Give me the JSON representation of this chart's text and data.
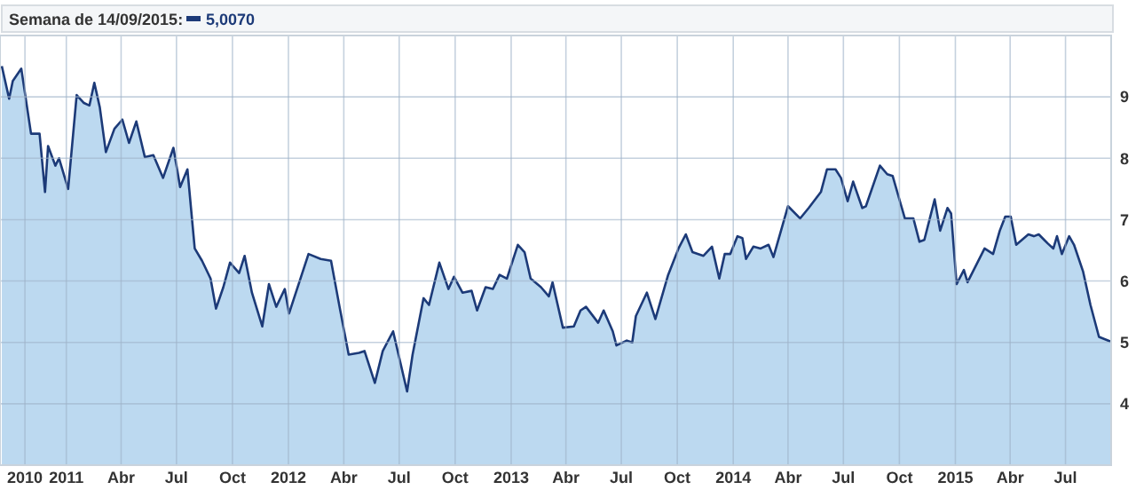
{
  "chart_data": {
    "type": "area",
    "title": "Semana de 14/09/2015:",
    "annotations": [
      "5,0070"
    ],
    "x": [
      "2010-09-17",
      "2010-09-29",
      "2010-10-05",
      "2010-10-19",
      "2010-11-04",
      "2010-11-18",
      "2010-11-27",
      "2010-12-02",
      "2010-12-14",
      "2010-12-20",
      "2011-01-04",
      "2011-01-18",
      "2011-01-30",
      "2011-02-08",
      "2011-02-16",
      "2011-02-25",
      "2011-03-07",
      "2011-03-21",
      "2011-04-03",
      "2011-04-14",
      "2011-04-26",
      "2011-05-10",
      "2011-05-24",
      "2011-06-09",
      "2011-06-26",
      "2011-07-07",
      "2011-07-19",
      "2011-07-31",
      "2011-08-12",
      "2011-08-26",
      "2011-09-04",
      "2011-09-16",
      "2011-09-27",
      "2011-10-12",
      "2011-10-21",
      "2011-11-02",
      "2011-11-19",
      "2011-11-30",
      "2011-12-12",
      "2011-12-26",
      "2012-01-02",
      "2012-02-03",
      "2012-02-23",
      "2012-03-11",
      "2012-03-25",
      "2012-04-09",
      "2012-04-26",
      "2012-05-05",
      "2012-05-22",
      "2012-06-04",
      "2012-06-21",
      "2012-07-14",
      "2012-07-23",
      "2012-08-10",
      "2012-08-19",
      "2012-09-05",
      "2012-09-20",
      "2012-09-29",
      "2012-10-13",
      "2012-10-28",
      "2012-11-06",
      "2012-11-20",
      "2012-12-02",
      "2012-12-13",
      "2012-12-25",
      "2013-01-12",
      "2013-01-23",
      "2013-02-02",
      "2013-02-19",
      "2013-03-04",
      "2013-03-10",
      "2013-03-27",
      "2013-04-14",
      "2013-04-25",
      "2013-05-04",
      "2013-05-24",
      "2013-06-02",
      "2013-06-17",
      "2013-06-23",
      "2013-07-10",
      "2013-07-19",
      "2013-07-25",
      "2013-08-12",
      "2013-08-26",
      "2013-09-16",
      "2013-10-03",
      "2013-10-15",
      "2013-10-26",
      "2013-11-13",
      "2013-11-27",
      "2013-12-09",
      "2013-12-18",
      "2013-12-27",
      "2014-01-08",
      "2014-01-16",
      "2014-01-22",
      "2014-02-03",
      "2014-02-15",
      "2014-02-28",
      "2014-03-08",
      "2014-04-01",
      "2014-04-21",
      "2014-05-05",
      "2014-05-25",
      "2014-06-04",
      "2014-06-18",
      "2014-06-27",
      "2014-07-08",
      "2014-07-17",
      "2014-08-01",
      "2014-08-07",
      "2014-08-30",
      "2014-09-11",
      "2014-09-20",
      "2014-10-10",
      "2014-10-24",
      "2014-11-03",
      "2014-11-11",
      "2014-11-28",
      "2014-12-07",
      "2014-12-19",
      "2014-12-25",
      "2015-01-03",
      "2015-01-15",
      "2015-01-21",
      "2015-02-18",
      "2015-03-04",
      "2015-03-15",
      "2015-03-24",
      "2015-04-02",
      "2015-04-11",
      "2015-05-01",
      "2015-05-10",
      "2015-05-18",
      "2015-05-27",
      "2015-06-02",
      "2015-06-11",
      "2015-06-17",
      "2015-06-25",
      "2015-07-07",
      "2015-07-15",
      "2015-07-30",
      "2015-08-11",
      "2015-08-25",
      "2015-09-14"
    ],
    "series": [
      {
        "color": "#1c3a78",
        "values": [
          9.5,
          8.97,
          9.26,
          9.46,
          8.4,
          8.4,
          7.45,
          8.2,
          7.88,
          8.0,
          7.5,
          9.03,
          8.9,
          8.86,
          9.23,
          8.83,
          8.1,
          8.48,
          8.63,
          8.25,
          8.6,
          8.02,
          8.05,
          7.68,
          8.17,
          7.53,
          7.82,
          6.53,
          6.33,
          6.04,
          5.55,
          5.9,
          6.3,
          6.13,
          6.41,
          5.81,
          5.26,
          5.95,
          5.58,
          5.87,
          5.47,
          6.44,
          6.36,
          6.33,
          5.58,
          4.8,
          4.83,
          4.86,
          4.34,
          4.86,
          5.18,
          4.2,
          4.8,
          5.72,
          5.61,
          6.3,
          5.87,
          6.07,
          5.81,
          5.84,
          5.52,
          5.9,
          5.87,
          6.1,
          6.04,
          6.59,
          6.47,
          6.04,
          5.9,
          5.75,
          5.98,
          5.24,
          5.26,
          5.52,
          5.58,
          5.32,
          5.52,
          5.18,
          4.95,
          5.03,
          5.0,
          5.43,
          5.81,
          5.38,
          6.1,
          6.53,
          6.76,
          6.47,
          6.41,
          6.56,
          6.04,
          6.44,
          6.44,
          6.73,
          6.7,
          6.36,
          6.56,
          6.53,
          6.59,
          6.39,
          7.22,
          7.02,
          7.19,
          7.45,
          7.82,
          7.82,
          7.68,
          7.3,
          7.62,
          7.19,
          7.22,
          7.88,
          7.74,
          7.71,
          7.02,
          7.02,
          6.64,
          6.67,
          7.33,
          6.82,
          7.19,
          7.1,
          5.95,
          6.18,
          5.98,
          6.53,
          6.44,
          6.82,
          7.05,
          7.05,
          6.59,
          6.76,
          6.73,
          6.76,
          6.67,
          6.61,
          6.53,
          6.73,
          6.44,
          6.73,
          6.59,
          6.15,
          5.61,
          5.09,
          5.01
        ]
      }
    ],
    "xlim": [
      "2010-09-14",
      "2015-09-14"
    ],
    "xticks": [
      {
        "value": "2010-10-25",
        "label": "2010"
      },
      {
        "value": "2011-01-01",
        "label": "2011"
      },
      {
        "value": "2011-04-01",
        "label": "Abr"
      },
      {
        "value": "2011-07-01",
        "label": "Jul"
      },
      {
        "value": "2011-10-01",
        "label": "Oct"
      },
      {
        "value": "2012-01-01",
        "label": "2012"
      },
      {
        "value": "2012-04-01",
        "label": "Abr"
      },
      {
        "value": "2012-07-01",
        "label": "Jul"
      },
      {
        "value": "2012-10-01",
        "label": "Oct"
      },
      {
        "value": "2013-01-01",
        "label": "2013"
      },
      {
        "value": "2013-04-01",
        "label": "Abr"
      },
      {
        "value": "2013-07-01",
        "label": "Jul"
      },
      {
        "value": "2013-10-01",
        "label": "Oct"
      },
      {
        "value": "2014-01-01",
        "label": "2014"
      },
      {
        "value": "2014-04-01",
        "label": "Abr"
      },
      {
        "value": "2014-07-01",
        "label": "Jul"
      },
      {
        "value": "2014-10-01",
        "label": "Oct"
      },
      {
        "value": "2015-01-01",
        "label": "2015"
      },
      {
        "value": "2015-04-01",
        "label": "Abr"
      },
      {
        "value": "2015-07-01",
        "label": "Jul"
      }
    ],
    "ylim": [
      3,
      10
    ],
    "yticks": [
      4,
      5,
      6,
      7,
      8,
      9
    ],
    "grid": true,
    "line_style": "solid"
  }
}
